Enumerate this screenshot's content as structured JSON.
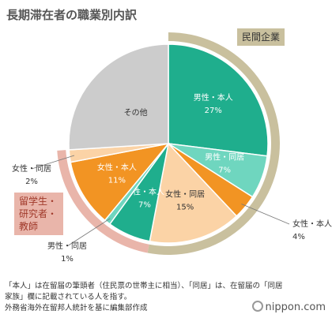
{
  "chart_data": {
    "type": "pie",
    "title": "長期滞在者の職業別内訳",
    "categories": [
      "男性・本人",
      "男性・同居",
      "女性・本人",
      "女性・同居",
      "男性・本人",
      "男性・同居",
      "女性・本人",
      "女性・同居",
      "その他"
    ],
    "values": [
      27,
      7,
      4,
      15,
      7,
      1,
      11,
      2,
      26
    ],
    "value_labels": [
      "27%",
      "7%",
      "4%",
      "15%",
      "7%",
      "1%",
      "11%",
      "2%",
      null
    ],
    "colors": [
      "#1fae8d",
      "#6fd6bf",
      "#f29423",
      "#fbd3a6",
      "#1fae8d",
      "#6fd6bf",
      "#f29423",
      "#fbd3a6",
      "#cccccc"
    ],
    "groups": [
      {
        "name": "民間企業",
        "color": "#c9c09e",
        "items": [
          0,
          1,
          2,
          3
        ]
      },
      {
        "name": "留学生・研究者・教師",
        "color": "#e9b5aa",
        "items": [
          4,
          5,
          6,
          7
        ]
      }
    ],
    "notes": "「本人」は在留届の筆頭者（住民票の世帯主に相当）、「同居」は、在留届の「同居家族」欄に記載されている人を指す。",
    "source": "外務省海外在留邦人統計を基に編集部作成",
    "logo": "nippon.com"
  }
}
